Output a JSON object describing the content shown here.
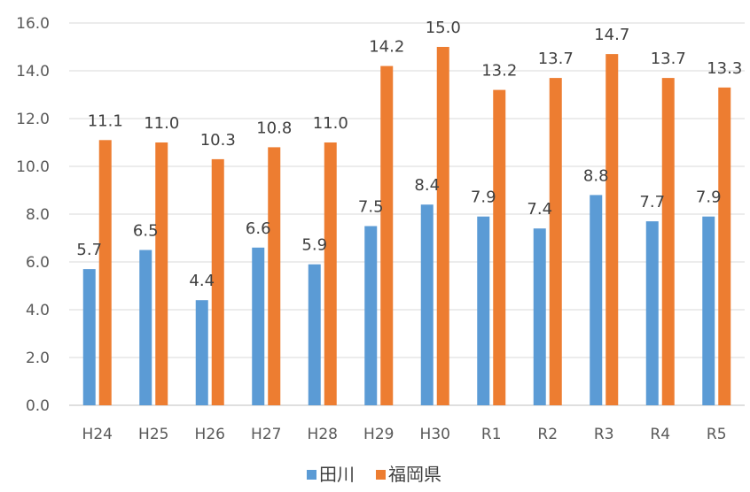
{
  "chart_data": {
    "type": "bar",
    "categories": [
      "H24",
      "H25",
      "H26",
      "H27",
      "H28",
      "H29",
      "H30",
      "R1",
      "R2",
      "R3",
      "R4",
      "R5"
    ],
    "series": [
      {
        "name": "田川",
        "color": "#5b9bd5",
        "values": [
          5.7,
          6.5,
          4.4,
          6.6,
          5.9,
          7.5,
          8.4,
          7.9,
          7.4,
          8.8,
          7.7,
          7.9
        ]
      },
      {
        "name": "福岡県",
        "color": "#ed7d31",
        "values": [
          11.1,
          11.0,
          10.3,
          10.8,
          11.0,
          14.2,
          15.0,
          13.2,
          13.7,
          14.7,
          13.7,
          13.3
        ]
      }
    ],
    "title": "",
    "xlabel": "",
    "ylabel": "",
    "ylim": [
      0,
      16
    ],
    "yticks": [
      "0.0",
      "2.0",
      "4.0",
      "6.0",
      "8.0",
      "10.0",
      "12.0",
      "14.0",
      "16.0"
    ],
    "grid": true,
    "legend_position": "bottom",
    "data_labels": true
  }
}
